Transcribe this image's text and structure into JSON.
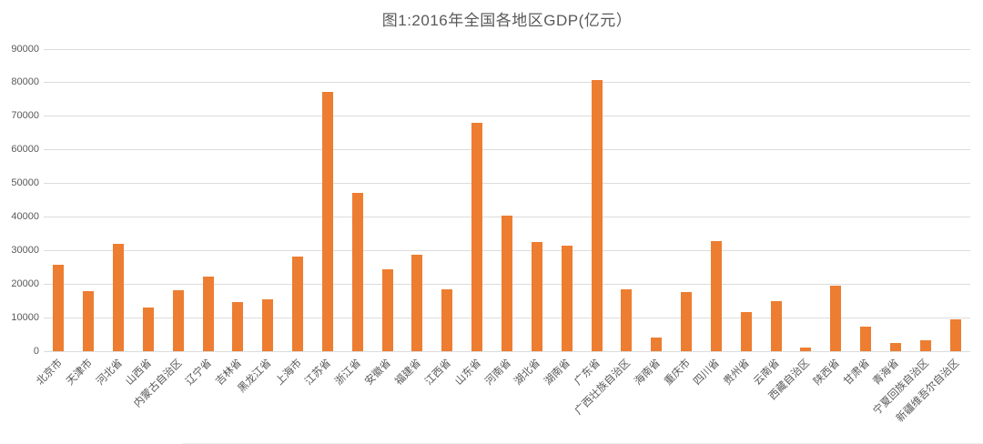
{
  "chart_data": {
    "type": "bar",
    "title": "图1:2016年全国各地区GDP(亿元）",
    "categories": [
      "北京市",
      "天津市",
      "河北省",
      "山西省",
      "内蒙古自治区",
      "辽宁省",
      "吉林省",
      "黑龙江省",
      "上海市",
      "江苏省",
      "浙江省",
      "安徽省",
      "福建省",
      "江西省",
      "山东省",
      "河南省",
      "湖北省",
      "湖南省",
      "广东省",
      "广西壮族自治区",
      "海南省",
      "重庆市",
      "四川省",
      "贵州省",
      "云南省",
      "西藏自治区",
      "陕西省",
      "甘肃省",
      "青海省",
      "宁夏回族自治区",
      "新疆维吾尔自治区"
    ],
    "values": [
      25669,
      17885,
      32070,
      13050,
      18128,
      22247,
      14777,
      15386,
      28179,
      77388,
      47251,
      24408,
      28811,
      18499,
      68024,
      40472,
      32665,
      31551,
      80855,
      18317,
      4053,
      17741,
      32935,
      11777,
      14870,
      1151,
      19400,
      7200,
      2572,
      3169,
      9617
    ],
    "xlabel": "",
    "ylabel": "",
    "ylim": [
      0,
      90000
    ],
    "ytick_step": 10000,
    "grid": true,
    "legend": "none",
    "bar_color": "#ED7D31",
    "text_color": "#595959",
    "gridline_color": "#DCDCDC",
    "background_color": "#FFFFFF"
  }
}
